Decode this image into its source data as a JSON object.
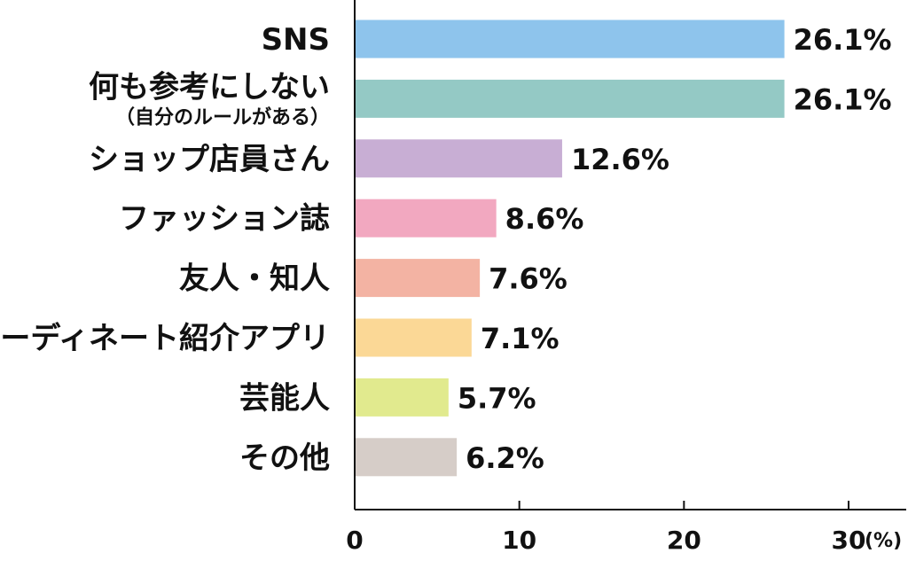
{
  "chart_data": {
    "type": "bar",
    "orientation": "horizontal",
    "categories": [
      "SNS",
      "何も参考にしない",
      "ショップ店員さん",
      "ファッション誌",
      "友人・知人",
      "コーディネート紹介アプリ",
      "芸能人",
      "その他"
    ],
    "category_sublabels": [
      "",
      "（自分のルールがある）",
      "",
      "",
      "",
      "",
      "",
      ""
    ],
    "values": [
      26.1,
      26.1,
      12.6,
      8.6,
      7.6,
      7.1,
      5.7,
      6.2
    ],
    "value_labels": [
      "26.1%",
      "26.1%",
      "12.6%",
      "8.6%",
      "7.6%",
      "7.1%",
      "5.7%",
      "6.2%"
    ],
    "colors": [
      "#8ec4ec",
      "#94c9c5",
      "#c8aed4",
      "#f2a8c0",
      "#f3b3a3",
      "#fbd896",
      "#e1ea8e",
      "#d6cdc8"
    ],
    "xlim": [
      0,
      33.5
    ],
    "xticks": [
      0,
      10,
      20,
      30
    ],
    "xtick_labels": [
      "0",
      "10",
      "20",
      "30"
    ],
    "unit_label": "(%)",
    "grid": false,
    "legend": "none"
  }
}
